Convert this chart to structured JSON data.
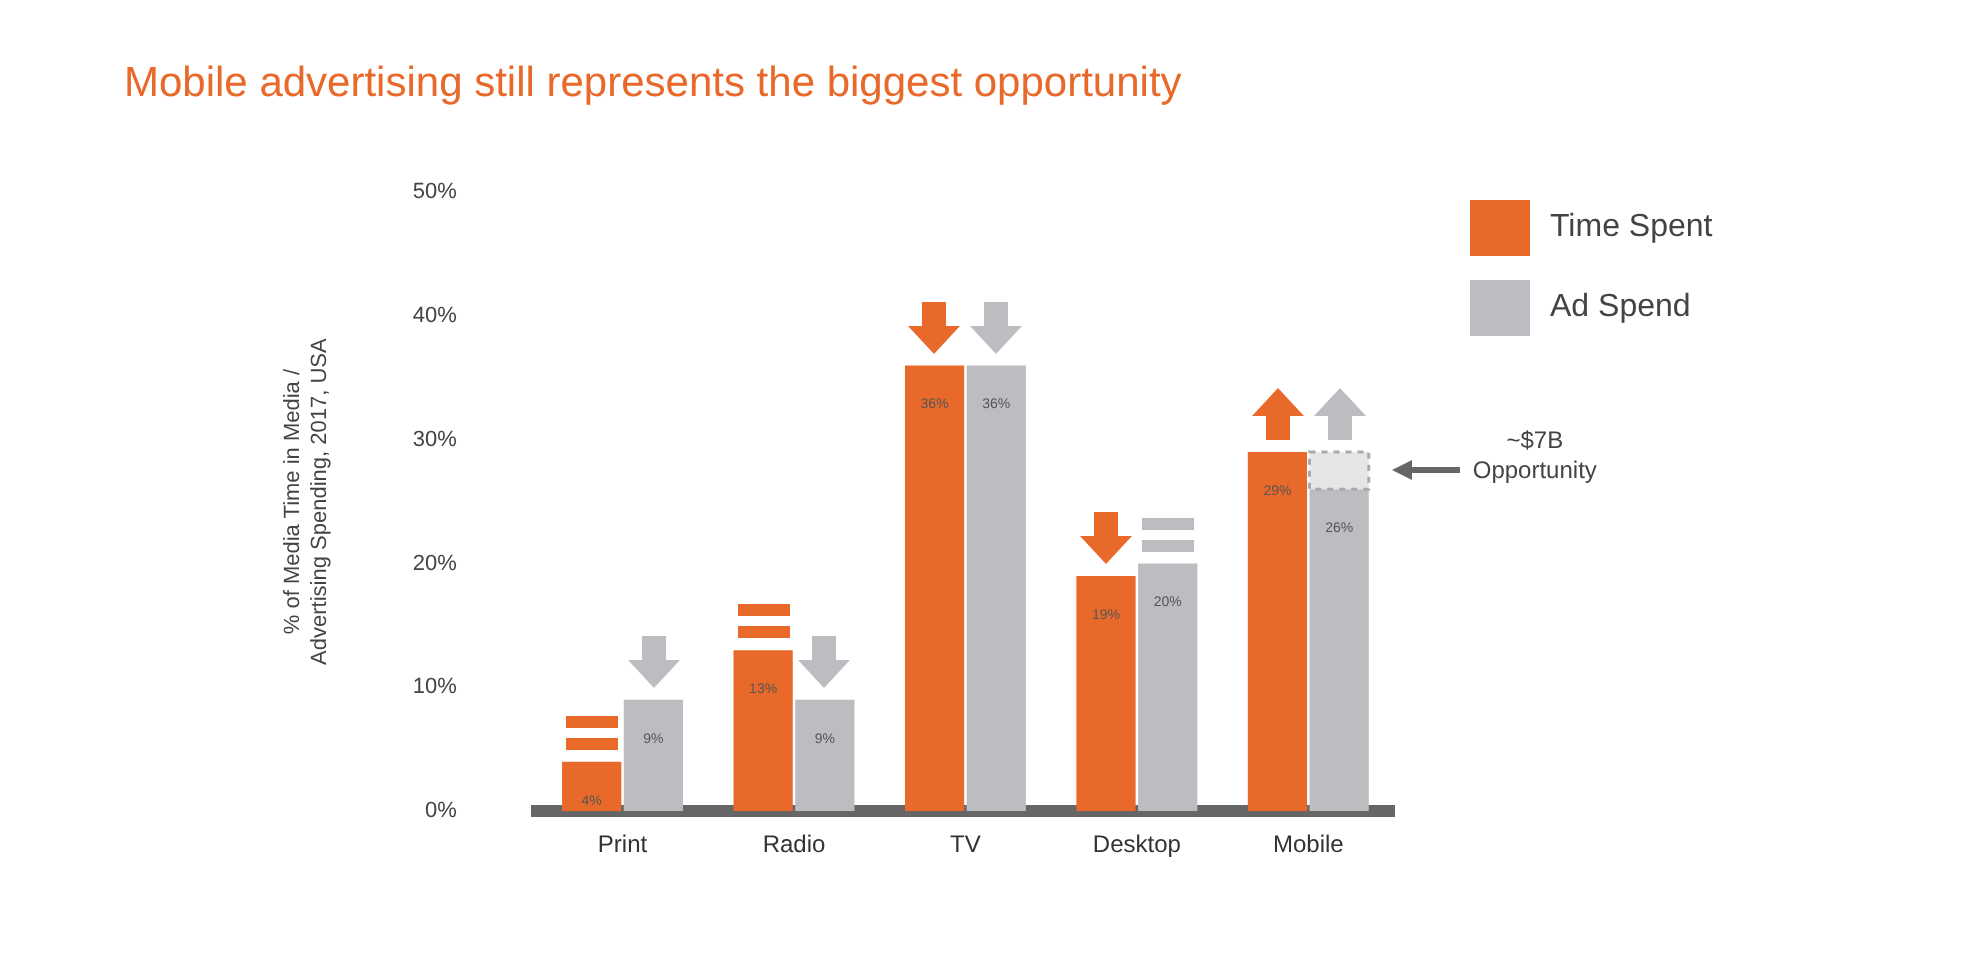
{
  "chart_data": {
    "type": "bar",
    "title": "Mobile advertising still represents the biggest opportunity",
    "ylabel": "% of Media Time in Media / Advertising Spending, 2017, USA",
    "categories": [
      "Print",
      "Radio",
      "TV",
      "Desktop",
      "Mobile"
    ],
    "series": [
      {
        "name": "Time Spent",
        "color": "#e8692a",
        "values": [
          4,
          13,
          36,
          19,
          29
        ],
        "value_labels": [
          "4%",
          "13%",
          "36%",
          "19%",
          "29%"
        ]
      },
      {
        "name": "Ad Spend",
        "color": "#bcbdc0",
        "values": [
          9,
          9,
          36,
          20,
          26
        ],
        "value_labels": [
          "9%",
          "9%",
          "36%",
          "20%",
          "26%"
        ]
      },
      {
        "color": "#e6e6e6",
        "values": [
          null,
          null,
          null,
          null,
          3
        ],
        "base": [
          null,
          null,
          null,
          null,
          26
        ],
        "line_style": "dashed"
      }
    ],
    "ylim": [
      0,
      50
    ],
    "yticks": [
      {
        "value": 0,
        "label": "0%"
      },
      {
        "value": 10,
        "label": "10%"
      },
      {
        "value": 20,
        "label": "20%"
      },
      {
        "value": 30,
        "label": "30%"
      },
      {
        "value": 40,
        "label": "40%"
      },
      {
        "value": 50,
        "label": "50%"
      }
    ],
    "grid": false,
    "legend": "top right",
    "annotations": [
      "~$7B Opportunity"
    ]
  }
}
